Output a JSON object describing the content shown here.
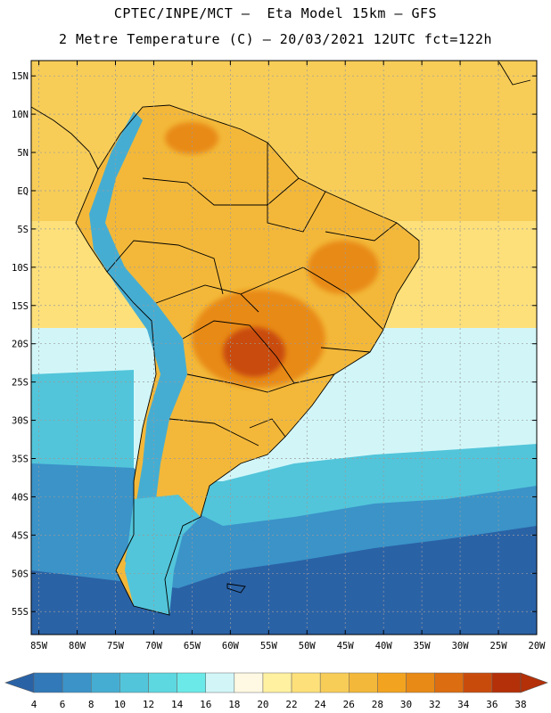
{
  "header": {
    "line1": "CPTEC/INPE/MCT –  Eta Model 15km – GFS",
    "line2": "2 Metre Temperature (C) – 20/03/2021 12UTC fct=122h"
  },
  "axes": {
    "lat_labels": [
      "15N",
      "10N",
      "5N",
      "EQ",
      "5S",
      "10S",
      "15S",
      "20S",
      "25S",
      "30S",
      "35S",
      "40S",
      "45S",
      "50S",
      "55S"
    ],
    "lat_values": [
      15,
      10,
      5,
      0,
      -5,
      -10,
      -15,
      -20,
      -25,
      -30,
      -35,
      -40,
      -45,
      -50,
      -55
    ],
    "lon_labels": [
      "85W",
      "80W",
      "75W",
      "70W",
      "65W",
      "60W",
      "55W",
      "50W",
      "45W",
      "40W",
      "35W",
      "30W",
      "25W",
      "20W"
    ],
    "lon_values": [
      -85,
      -80,
      -75,
      -70,
      -65,
      -60,
      -55,
      -50,
      -45,
      -40,
      -35,
      -30,
      -25,
      -20
    ],
    "lat_range": [
      -58,
      17
    ],
    "lon_range": [
      -86,
      -20
    ]
  },
  "legend": {
    "labels": [
      "4",
      "6",
      "8",
      "10",
      "12",
      "14",
      "16",
      "18",
      "20",
      "22",
      "24",
      "26",
      "28",
      "30",
      "32",
      "34",
      "36",
      "38"
    ],
    "colors": [
      "#2a62a6",
      "#3179b8",
      "#3b93c8",
      "#46add2",
      "#52c5da",
      "#5ed8e0",
      "#6be9e8",
      "#d2f6f8",
      "#fff8e2",
      "#fff1a0",
      "#fde07a",
      "#f7cd58",
      "#f3b83a",
      "#f2a320",
      "#e88a16",
      "#dc6d10",
      "#c94b0c",
      "#b33008"
    ]
  },
  "map": {
    "colors": {
      "ocean_cold_deep": "#2a62a6",
      "ocean_cold": "#3b93c8",
      "ocean_cool": "#52c5da",
      "ocean_mild": "#d2f6f8",
      "ocean_warm": "#fde07a",
      "ocean_tropical": "#f7cd58",
      "land_warm": "#f3b83a",
      "land_hot": "#e88a16",
      "land_hottest": "#c94b0c",
      "andes": "#46add2",
      "border": "#000000"
    }
  }
}
